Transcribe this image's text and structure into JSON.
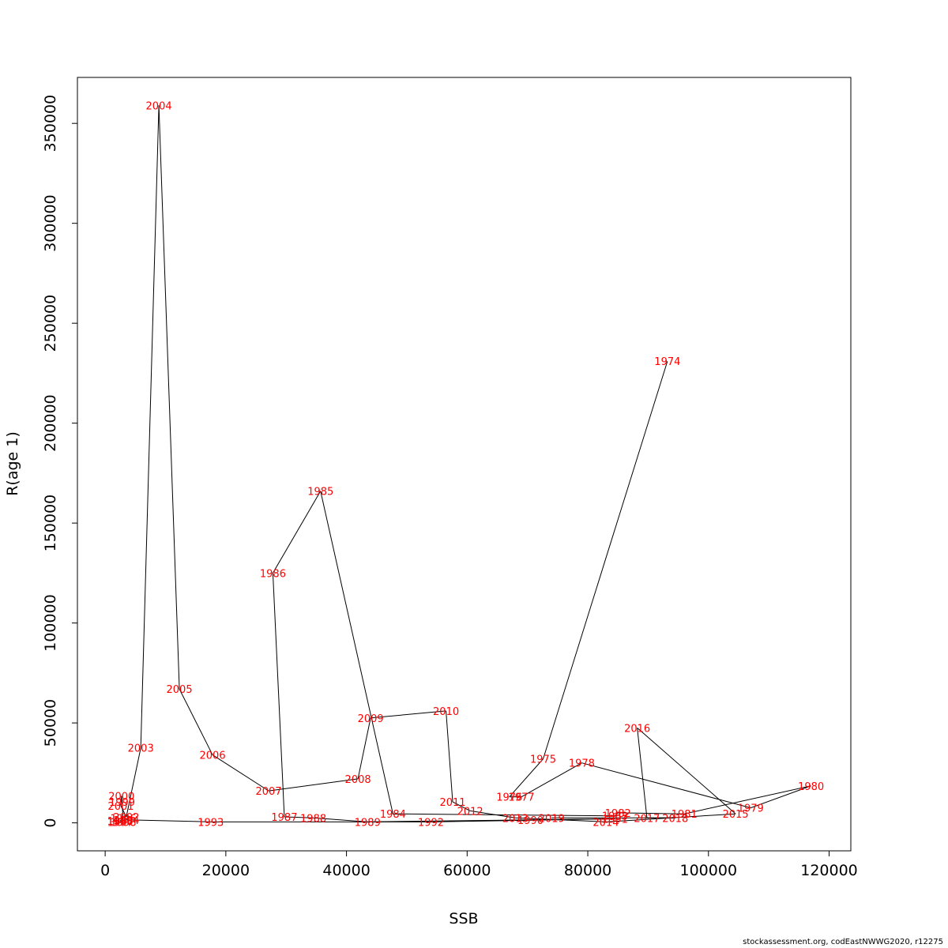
{
  "footer": "stockassessment.org, codEastNWWG2020, r12275",
  "chart_data": {
    "type": "line",
    "title": "",
    "xlabel": "SSB",
    "ylabel": "R(age 1)",
    "xlim": [
      -4600,
      123600
    ],
    "ylim": [
      -14000,
      373000
    ],
    "x_ticks": [
      0,
      20000,
      40000,
      60000,
      80000,
      100000,
      120000
    ],
    "y_ticks": [
      0,
      50000,
      100000,
      150000,
      200000,
      250000,
      300000,
      350000
    ],
    "grid": false,
    "line_color": "#000000",
    "label_color": "#ff0000",
    "points": [
      {
        "year": "1974",
        "x": 93200,
        "y": 231000
      },
      {
        "year": "1975",
        "x": 72600,
        "y": 32000
      },
      {
        "year": "1976",
        "x": 67000,
        "y": 13000
      },
      {
        "year": "1977",
        "x": 69000,
        "y": 13000
      },
      {
        "year": "1978",
        "x": 79000,
        "y": 30000
      },
      {
        "year": "1979",
        "x": 107000,
        "y": 7500
      },
      {
        "year": "1980",
        "x": 117000,
        "y": 18500
      },
      {
        "year": "1981",
        "x": 96000,
        "y": 4500
      },
      {
        "year": "1982",
        "x": 85000,
        "y": 5000
      },
      {
        "year": "1983",
        "x": 84500,
        "y": 3500
      },
      {
        "year": "1984",
        "x": 47700,
        "y": 4500
      },
      {
        "year": "1985",
        "x": 35700,
        "y": 166000
      },
      {
        "year": "1986",
        "x": 27800,
        "y": 125000
      },
      {
        "year": "1987",
        "x": 29700,
        "y": 3000
      },
      {
        "year": "1988",
        "x": 34500,
        "y": 2500
      },
      {
        "year": "1989",
        "x": 43500,
        "y": 500
      },
      {
        "year": "1990",
        "x": 70500,
        "y": 1500
      },
      {
        "year": "1991",
        "x": 84500,
        "y": 2000
      },
      {
        "year": "1992",
        "x": 54000,
        "y": 500
      },
      {
        "year": "1993",
        "x": 17500,
        "y": 500
      },
      {
        "year": "1994",
        "x": 3500,
        "y": 1500
      },
      {
        "year": "1995",
        "x": 2500,
        "y": 1000
      },
      {
        "year": "1996",
        "x": 3000,
        "y": 2500
      },
      {
        "year": "1997",
        "x": 2500,
        "y": 500
      },
      {
        "year": "1998",
        "x": 3000,
        "y": 500
      },
      {
        "year": "1999",
        "x": 2800,
        "y": 10500
      },
      {
        "year": "2000",
        "x": 2700,
        "y": 13500
      },
      {
        "year": "2001",
        "x": 2600,
        "y": 8500
      },
      {
        "year": "2002",
        "x": 3500,
        "y": 3000
      },
      {
        "year": "2003",
        "x": 5900,
        "y": 37500
      },
      {
        "year": "2004",
        "x": 8900,
        "y": 359000
      },
      {
        "year": "2005",
        "x": 12300,
        "y": 67000
      },
      {
        "year": "2006",
        "x": 17800,
        "y": 34000
      },
      {
        "year": "2007",
        "x": 27100,
        "y": 16000
      },
      {
        "year": "2008",
        "x": 41900,
        "y": 22000
      },
      {
        "year": "2009",
        "x": 44000,
        "y": 52500
      },
      {
        "year": "2010",
        "x": 56500,
        "y": 56000
      },
      {
        "year": "2011",
        "x": 57600,
        "y": 10500
      },
      {
        "year": "2012",
        "x": 60500,
        "y": 6000
      },
      {
        "year": "2013",
        "x": 68000,
        "y": 2500
      },
      {
        "year": "2014",
        "x": 83000,
        "y": 500
      },
      {
        "year": "2015",
        "x": 104500,
        "y": 4500
      },
      {
        "year": "2016",
        "x": 88200,
        "y": 47500
      },
      {
        "year": "2017",
        "x": 89800,
        "y": 2500
      },
      {
        "year": "2018",
        "x": 94500,
        "y": 2500
      },
      {
        "year": "2019",
        "x": 74000,
        "y": 2500
      }
    ]
  }
}
